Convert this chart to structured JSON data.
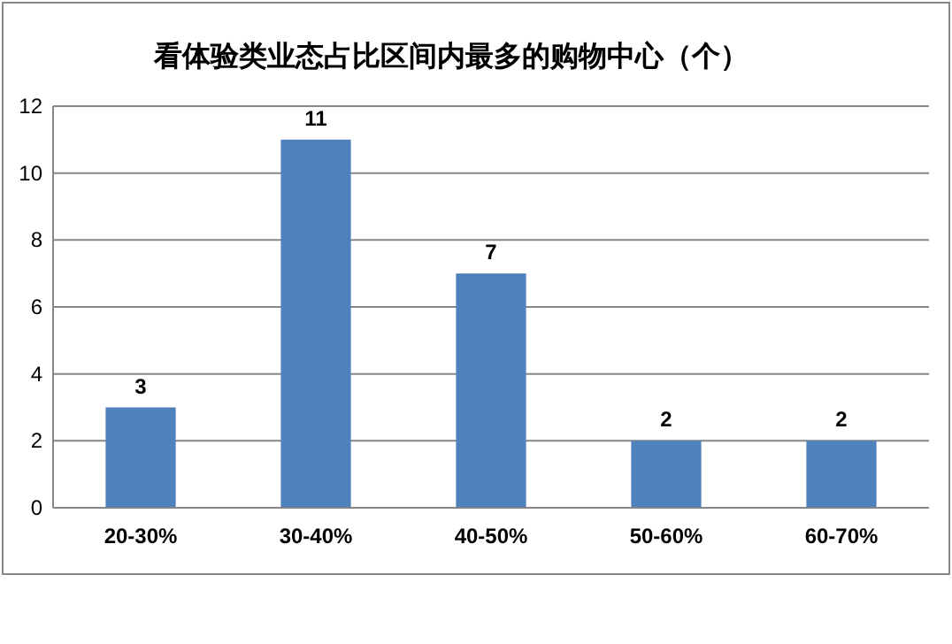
{
  "chart_data": {
    "type": "bar",
    "title": "看体验类业态占比区间内最多的购物中心（个）",
    "categories": [
      "20-30%",
      "30-40%",
      "40-50%",
      "50-60%",
      "60-70%"
    ],
    "values": [
      3,
      11,
      7,
      2,
      2
    ],
    "color": "#4f81bd",
    "ylim": [
      0,
      12
    ],
    "yticks": [
      0,
      2,
      4,
      6,
      8,
      10,
      12
    ],
    "grid": "y",
    "data_labels": true
  }
}
